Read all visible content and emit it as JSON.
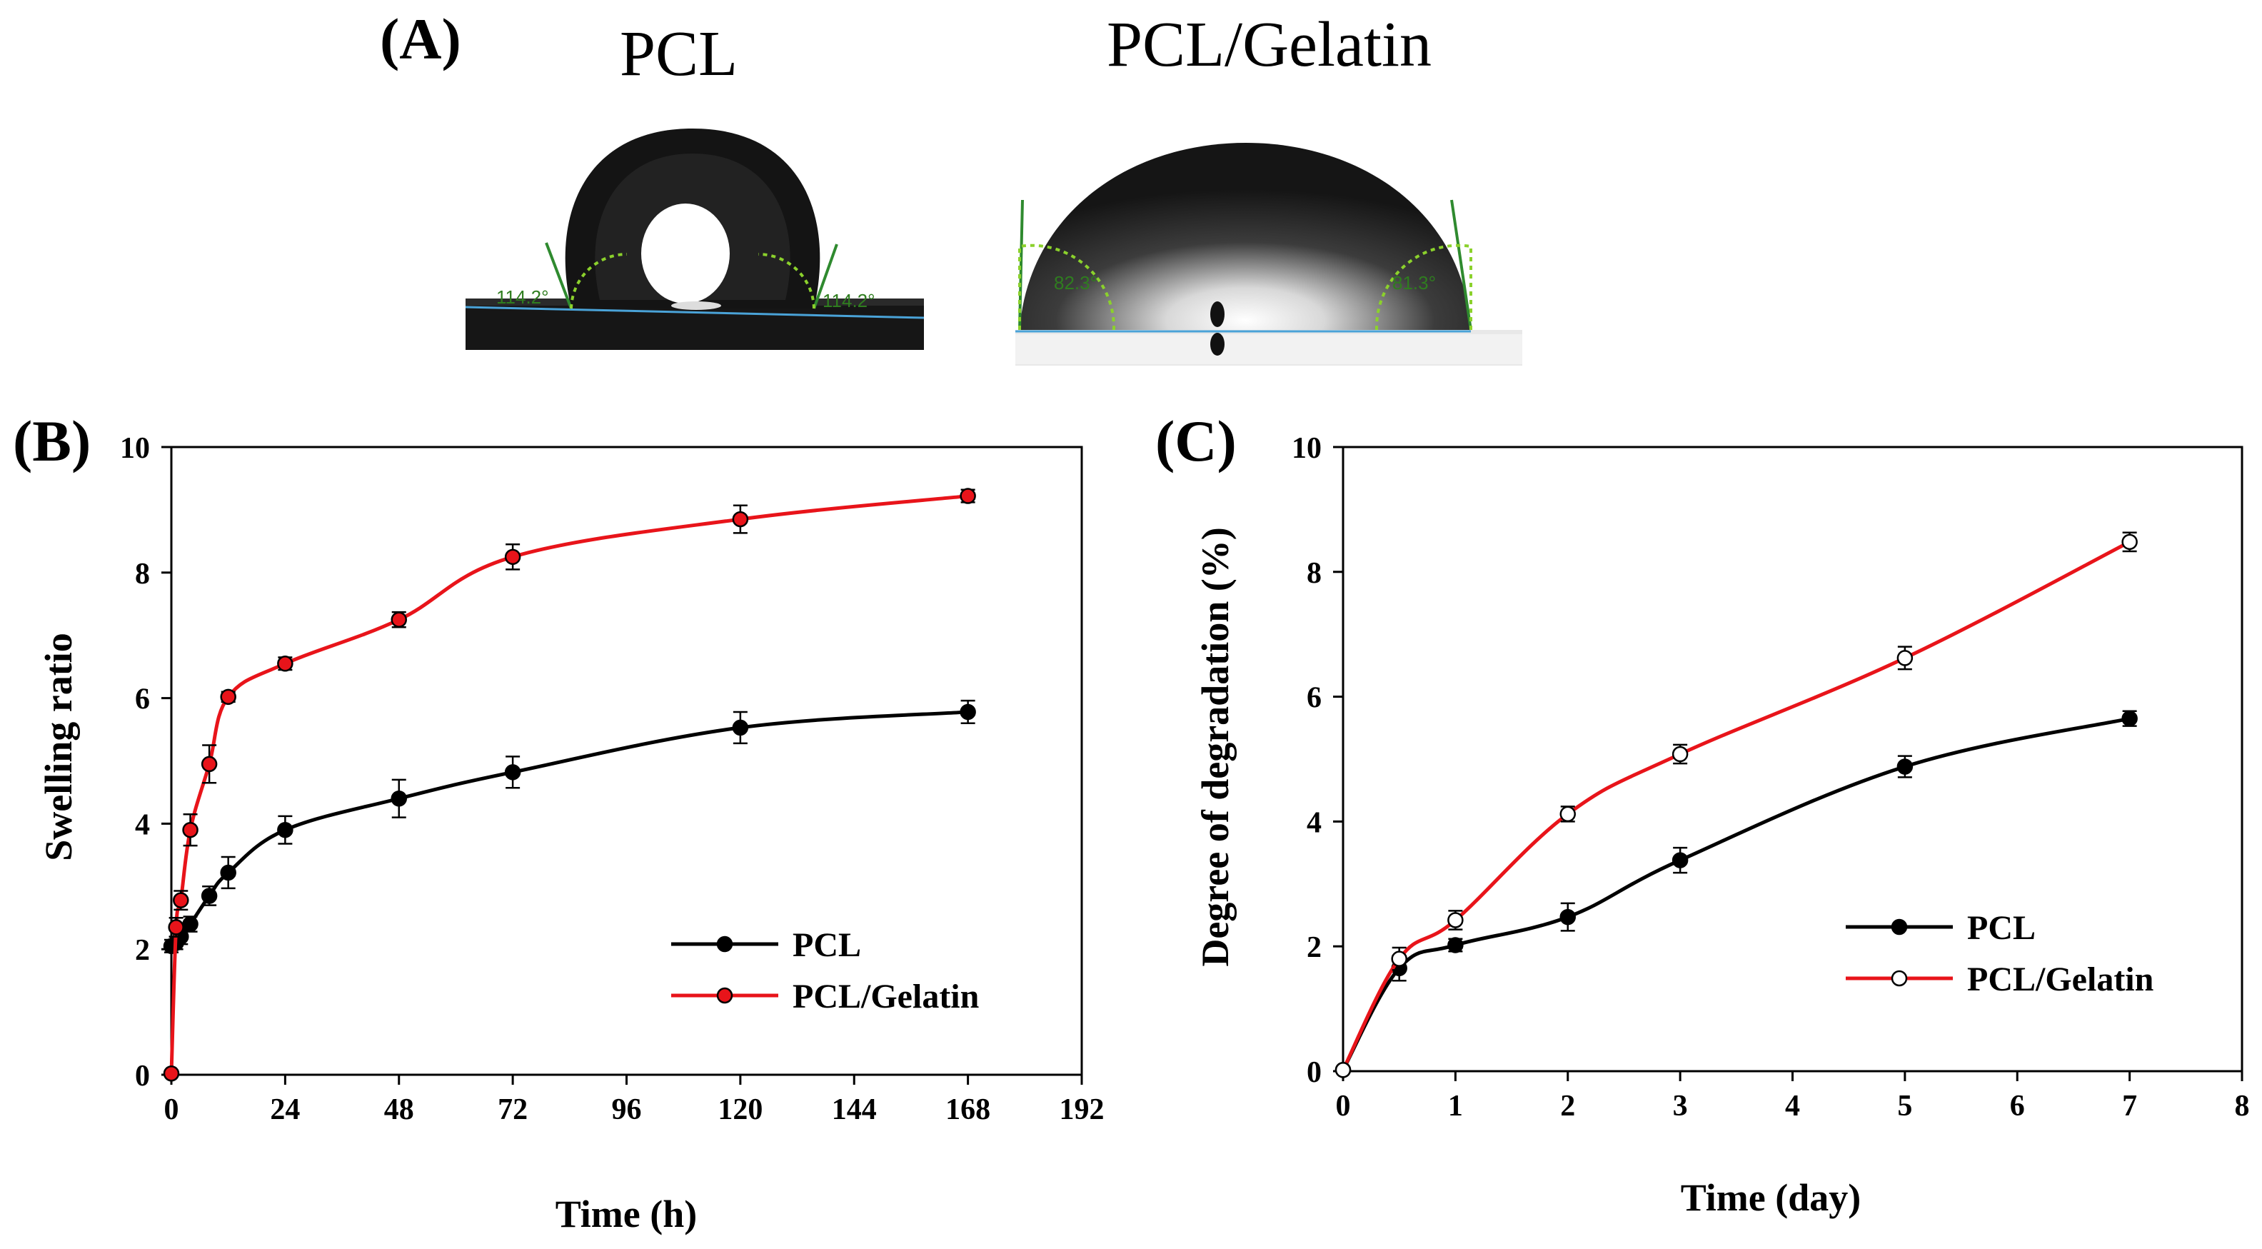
{
  "panelA": {
    "label": "(A)",
    "photos": [
      {
        "title": "PCL",
        "angle_left": "114.2°",
        "angle_right": "114.2°"
      },
      {
        "title": "PCL/Gelatin",
        "angle_left": "82.3°",
        "angle_right": "81.3°"
      }
    ]
  },
  "chart_data": [
    {
      "panel": "(B)",
      "type": "line",
      "xlabel": "Time (h)",
      "ylabel": "Swelling ratio",
      "xlim": [
        0,
        192
      ],
      "ylim": [
        0,
        10
      ],
      "xticks": [
        0,
        24,
        48,
        72,
        96,
        120,
        144,
        168,
        192
      ],
      "yticks": [
        0,
        2,
        4,
        6,
        8,
        10
      ],
      "grid": false,
      "legend": "bottom-right",
      "series": [
        {
          "name": "PCL",
          "color": "#000000",
          "marker": "filled-black",
          "x": [
            0,
            1,
            2,
            4,
            8,
            12,
            24,
            48,
            72,
            120,
            168
          ],
          "y": [
            2.05,
            2.1,
            2.2,
            2.4,
            2.85,
            3.22,
            3.9,
            4.4,
            4.82,
            5.53,
            5.78
          ],
          "err": [
            0.1,
            0.1,
            0.12,
            0.12,
            0.15,
            0.25,
            0.22,
            0.3,
            0.25,
            0.25,
            0.18
          ]
        },
        {
          "name": "PCL/Gelatin",
          "color": "#e8141a",
          "marker": "filled-red",
          "x": [
            0,
            1,
            2,
            4,
            8,
            12,
            24,
            48,
            72,
            120,
            168
          ],
          "y": [
            0.02,
            2.35,
            2.78,
            3.9,
            4.95,
            6.02,
            6.55,
            7.25,
            8.25,
            8.85,
            9.22
          ],
          "err": [
            0.02,
            0.15,
            0.15,
            0.25,
            0.3,
            0.08,
            0.1,
            0.12,
            0.2,
            0.22,
            0.1
          ]
        }
      ]
    },
    {
      "panel": "(C)",
      "type": "line",
      "xlabel": "Time (day)",
      "ylabel": "Degree of degradation (%)",
      "xlim": [
        0,
        8
      ],
      "ylim": [
        0,
        10
      ],
      "xticks": [
        0,
        1,
        2,
        3,
        4,
        5,
        6,
        7,
        8
      ],
      "yticks": [
        0,
        2,
        4,
        6,
        8,
        10
      ],
      "grid": false,
      "legend": "bottom-right",
      "series": [
        {
          "name": "PCL",
          "color": "#000000",
          "marker": "filled-black",
          "x": [
            0,
            0.5,
            1,
            2,
            3,
            5,
            7
          ],
          "y": [
            0.02,
            1.65,
            2.02,
            2.47,
            3.38,
            4.88,
            5.65
          ],
          "err": [
            0.02,
            0.2,
            0.1,
            0.22,
            0.2,
            0.17,
            0.12
          ]
        },
        {
          "name": "PCL/Gelatin",
          "color": "#e8141a",
          "marker": "open-white",
          "x": [
            0,
            0.5,
            1,
            2,
            3,
            5,
            7
          ],
          "y": [
            0.02,
            1.8,
            2.42,
            4.12,
            5.08,
            6.62,
            8.48
          ],
          "err": [
            0.02,
            0.18,
            0.15,
            0.12,
            0.15,
            0.18,
            0.15
          ]
        }
      ]
    }
  ]
}
